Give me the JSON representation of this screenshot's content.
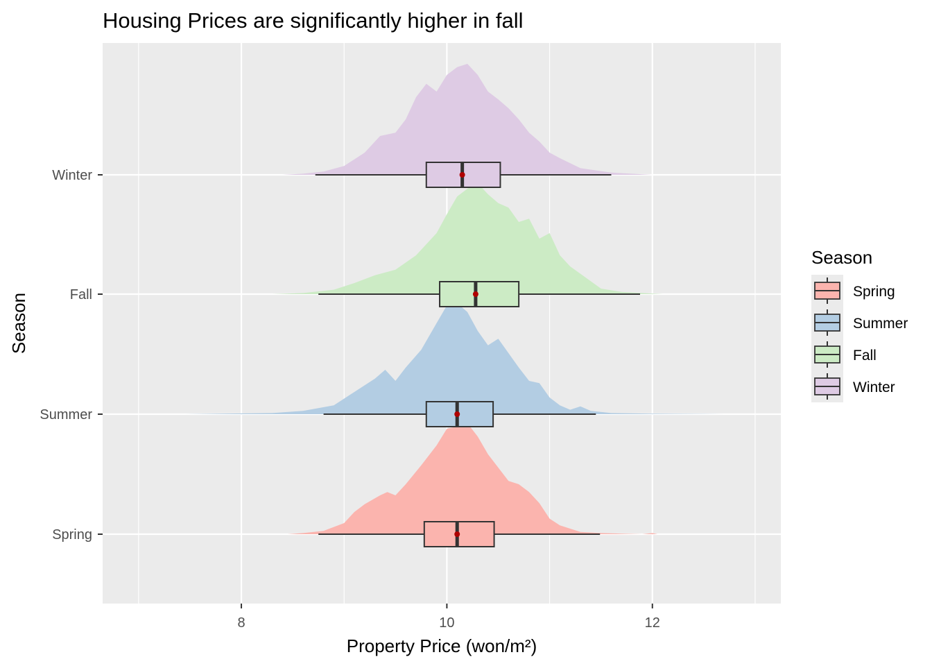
{
  "chart_data": {
    "type": "raincloud",
    "title": "Housing Prices are significantly higher in fall",
    "xlabel": "Property Price (won/m²)",
    "ylabel": "Season",
    "xlim": [
      6.65,
      13.25
    ],
    "x_ticks": [
      8,
      10,
      12
    ],
    "x_tick_labels": [
      "8",
      "10",
      "12"
    ],
    "x_minor_ticks": [
      7,
      9,
      11,
      13
    ],
    "categories": [
      "Spring",
      "Summer",
      "Fall",
      "Winter"
    ],
    "grid": true,
    "legend": {
      "title": "Season",
      "position": "right"
    },
    "colors": {
      "Spring": "#FBB4AE",
      "Summer": "#B3CDE3",
      "Fall": "#CCEBC5",
      "Winter": "#DECBE4",
      "mean_point": "#B00000",
      "panel_bg": "#EBEBEB",
      "grid": "#FFFFFF"
    },
    "series": [
      {
        "name": "Spring",
        "box": {
          "whisker_low": 8.75,
          "q1": 9.78,
          "median": 10.1,
          "q3": 10.46,
          "whisker_high": 11.49
        },
        "mean": 10.1,
        "density": [
          [
            8.45,
            0.0
          ],
          [
            8.6,
            0.01
          ],
          [
            8.8,
            0.03
          ],
          [
            9.0,
            0.1
          ],
          [
            9.1,
            0.2
          ],
          [
            9.2,
            0.27
          ],
          [
            9.35,
            0.35
          ],
          [
            9.42,
            0.38
          ],
          [
            9.5,
            0.35
          ],
          [
            9.6,
            0.45
          ],
          [
            9.75,
            0.62
          ],
          [
            9.9,
            0.8
          ],
          [
            10.0,
            0.95
          ],
          [
            10.1,
            0.97
          ],
          [
            10.2,
            1.0
          ],
          [
            10.3,
            0.88
          ],
          [
            10.4,
            0.72
          ],
          [
            10.5,
            0.6
          ],
          [
            10.6,
            0.48
          ],
          [
            10.7,
            0.45
          ],
          [
            10.8,
            0.38
          ],
          [
            10.9,
            0.28
          ],
          [
            11.0,
            0.14
          ],
          [
            11.1,
            0.08
          ],
          [
            11.2,
            0.05
          ],
          [
            11.3,
            0.02
          ],
          [
            11.5,
            0.01
          ],
          [
            11.9,
            0.0
          ],
          [
            12.0,
            0.01
          ],
          [
            12.05,
            0.0
          ]
        ]
      },
      {
        "name": "Summer",
        "box": {
          "whisker_low": 8.8,
          "q1": 9.8,
          "median": 10.1,
          "q3": 10.45,
          "whisker_high": 11.45
        },
        "mean": 10.1,
        "density": [
          [
            7.45,
            0.0
          ],
          [
            7.8,
            0.005
          ],
          [
            8.3,
            0.01
          ],
          [
            8.6,
            0.03
          ],
          [
            8.9,
            0.08
          ],
          [
            9.1,
            0.2
          ],
          [
            9.3,
            0.32
          ],
          [
            9.4,
            0.4
          ],
          [
            9.5,
            0.3
          ],
          [
            9.6,
            0.42
          ],
          [
            9.75,
            0.58
          ],
          [
            9.9,
            0.82
          ],
          [
            10.0,
            0.98
          ],
          [
            10.1,
            1.0
          ],
          [
            10.2,
            0.92
          ],
          [
            10.3,
            0.75
          ],
          [
            10.4,
            0.62
          ],
          [
            10.5,
            0.68
          ],
          [
            10.6,
            0.55
          ],
          [
            10.7,
            0.42
          ],
          [
            10.8,
            0.3
          ],
          [
            10.9,
            0.28
          ],
          [
            11.0,
            0.15
          ],
          [
            11.1,
            0.08
          ],
          [
            11.2,
            0.04
          ],
          [
            11.3,
            0.07
          ],
          [
            11.4,
            0.03
          ],
          [
            11.6,
            0.01
          ],
          [
            12.0,
            0.005
          ],
          [
            12.7,
            0.0
          ]
        ]
      },
      {
        "name": "Fall",
        "box": {
          "whisker_low": 8.75,
          "q1": 9.93,
          "median": 10.28,
          "q3": 10.7,
          "whisker_high": 11.88
        },
        "mean": 10.28,
        "density": [
          [
            8.3,
            0.0
          ],
          [
            8.6,
            0.01
          ],
          [
            8.9,
            0.04
          ],
          [
            9.1,
            0.1
          ],
          [
            9.3,
            0.17
          ],
          [
            9.5,
            0.22
          ],
          [
            9.7,
            0.35
          ],
          [
            9.9,
            0.55
          ],
          [
            10.0,
            0.72
          ],
          [
            10.1,
            0.88
          ],
          [
            10.2,
            0.95
          ],
          [
            10.3,
            1.0
          ],
          [
            10.4,
            0.9
          ],
          [
            10.5,
            0.82
          ],
          [
            10.6,
            0.78
          ],
          [
            10.7,
            0.65
          ],
          [
            10.8,
            0.68
          ],
          [
            10.9,
            0.5
          ],
          [
            11.0,
            0.55
          ],
          [
            11.1,
            0.35
          ],
          [
            11.2,
            0.25
          ],
          [
            11.35,
            0.15
          ],
          [
            11.5,
            0.05
          ],
          [
            11.7,
            0.02
          ],
          [
            12.1,
            0.0
          ]
        ]
      },
      {
        "name": "Winter",
        "box": {
          "whisker_low": 8.72,
          "q1": 9.8,
          "median": 10.15,
          "q3": 10.52,
          "whisker_high": 11.6
        },
        "mean": 10.15,
        "density": [
          [
            8.4,
            0.0
          ],
          [
            8.6,
            0.01
          ],
          [
            8.8,
            0.03
          ],
          [
            9.0,
            0.08
          ],
          [
            9.2,
            0.2
          ],
          [
            9.35,
            0.35
          ],
          [
            9.5,
            0.38
          ],
          [
            9.6,
            0.5
          ],
          [
            9.7,
            0.7
          ],
          [
            9.8,
            0.82
          ],
          [
            9.9,
            0.75
          ],
          [
            10.0,
            0.9
          ],
          [
            10.1,
            0.97
          ],
          [
            10.2,
            1.0
          ],
          [
            10.3,
            0.9
          ],
          [
            10.4,
            0.75
          ],
          [
            10.5,
            0.68
          ],
          [
            10.6,
            0.6
          ],
          [
            10.7,
            0.5
          ],
          [
            10.8,
            0.38
          ],
          [
            10.9,
            0.3
          ],
          [
            11.0,
            0.2
          ],
          [
            11.1,
            0.15
          ],
          [
            11.3,
            0.06
          ],
          [
            11.6,
            0.02
          ],
          [
            12.0,
            0.0
          ]
        ]
      }
    ]
  }
}
